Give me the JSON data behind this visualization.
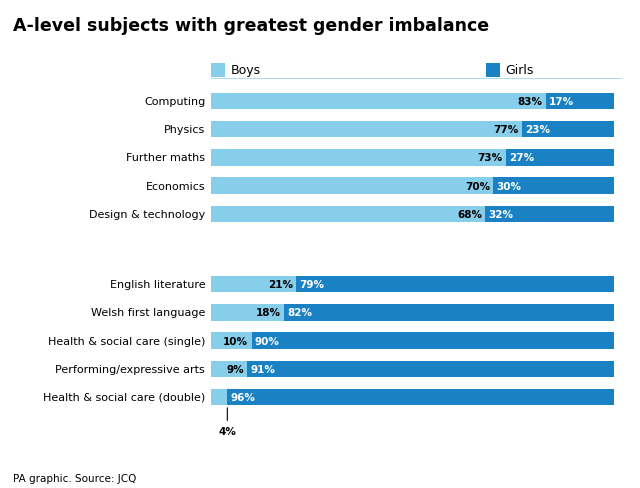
{
  "title": "A-level subjects with greatest gender imbalance",
  "source": "PA graphic. Source: JCQ",
  "legend_boys": "Boys",
  "legend_girls": "Girls",
  "color_boys": "#87CEEB",
  "color_girls": "#1A82C4",
  "subjects": [
    {
      "label": "Computing",
      "boys": 83,
      "girls": 17,
      "group": "top"
    },
    {
      "label": "Physics",
      "boys": 77,
      "girls": 23,
      "group": "top"
    },
    {
      "label": "Further maths",
      "boys": 73,
      "girls": 27,
      "group": "top"
    },
    {
      "label": "Economics",
      "boys": 70,
      "girls": 30,
      "group": "top"
    },
    {
      "label": "Design & technology",
      "boys": 68,
      "girls": 32,
      "group": "top"
    },
    {
      "label": "English literature",
      "boys": 21,
      "girls": 79,
      "group": "bottom"
    },
    {
      "label": "Welsh first language",
      "boys": 18,
      "girls": 82,
      "group": "bottom"
    },
    {
      "label": "Health & social care (single)",
      "boys": 10,
      "girls": 90,
      "group": "bottom"
    },
    {
      "label": "Performing/expressive arts",
      "boys": 9,
      "girls": 91,
      "group": "bottom"
    },
    {
      "label": "Health & social care (double)",
      "boys": 4,
      "girls": 96,
      "group": "bottom"
    }
  ],
  "bar_height": 0.58,
  "figsize": [
    6.4,
    4.89
  ],
  "dpi": 100,
  "label_fontsize": 8.0,
  "bar_label_fontsize": 7.5,
  "title_fontsize": 12.5,
  "source_fontsize": 7.5,
  "legend_fontsize": 9.0
}
